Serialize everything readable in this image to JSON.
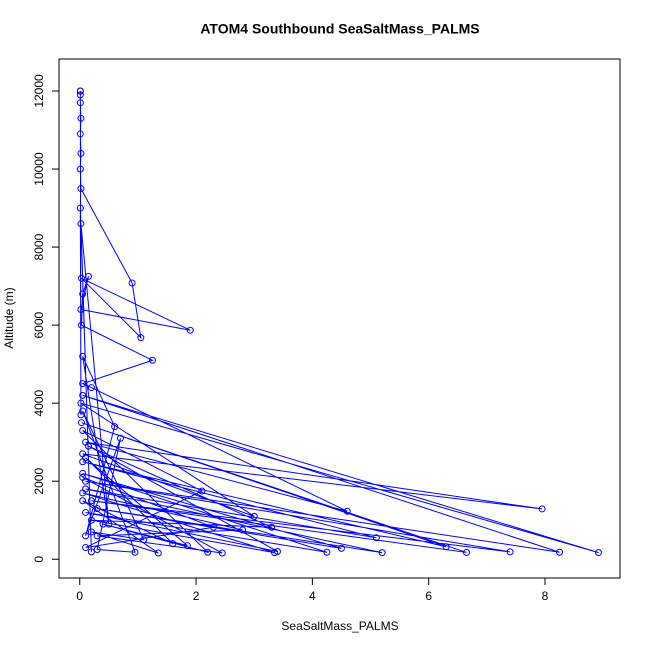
{
  "chart_data": {
    "type": "line-points",
    "title": "ATOM4 Southbound SeaSaltMass_PALMS",
    "x_label": "SeaSaltMass_PALMS",
    "y_label": "Altitude (m)",
    "color": "#0000ff",
    "xlim": [
      -0.357,
      9.29
    ],
    "ylim": [
      -480,
      12820
    ],
    "xticks": [
      0,
      2,
      4,
      6,
      8
    ],
    "yticks": [
      0,
      2000,
      4000,
      6000,
      8000,
      10000,
      12000
    ],
    "x": [
      0.01,
      0.01,
      0.02,
      0.01,
      0.02,
      0.01,
      0.02,
      0.9,
      1.05,
      0.03,
      1.9,
      0.02,
      0.15,
      0.05,
      0.03,
      1.25,
      0.05,
      0.2,
      4.6,
      0.1,
      7.95,
      0.05,
      3.0,
      0.02,
      8.92,
      0.05,
      8.25,
      0.1,
      7.4,
      0.2,
      6.65,
      0.03,
      6.3,
      0.05,
      5.1,
      0.1,
      5.2,
      0.3,
      4.5,
      0.05,
      4.25,
      0.1,
      3.4,
      0.15,
      3.3,
      0.2,
      3.35,
      0.05,
      2.8,
      0.3,
      2.45,
      0.05,
      2.3,
      0.1,
      2.1,
      0.05,
      2.2,
      0.4,
      1.85,
      0.1,
      1.6,
      0.05,
      1.35,
      0.2,
      1.1,
      0.05,
      0.95,
      0.3,
      0.7,
      0.1,
      0.6,
      0.05,
      0.5,
      0.02,
      0.2,
      0.01,
      0.02,
      0.01,
      0.01
    ],
    "y": [
      12000,
      11700,
      11300,
      10900,
      10400,
      10000,
      9500,
      7080,
      5680,
      7200,
      5870,
      6400,
      7250,
      6800,
      6000,
      5100,
      4500,
      4400,
      1230,
      3000,
      1290,
      2700,
      1100,
      4000,
      170,
      4200,
      180,
      2000,
      190,
      1500,
      175,
      3500,
      320,
      2500,
      550,
      1800,
      170,
      1300,
      280,
      2200,
      180,
      1200,
      200,
      2900,
      820,
      1000,
      170,
      1700,
      750,
      600,
      160,
      2100,
      820,
      300,
      1750,
      3300,
      180,
      900,
      350,
      2600,
      400,
      1500,
      160,
      700,
      500,
      3800,
      180,
      250,
      3100,
      600,
      3400,
      5200,
      900,
      8600,
      190,
      9000,
      3700,
      11900,
      12000
    ]
  }
}
